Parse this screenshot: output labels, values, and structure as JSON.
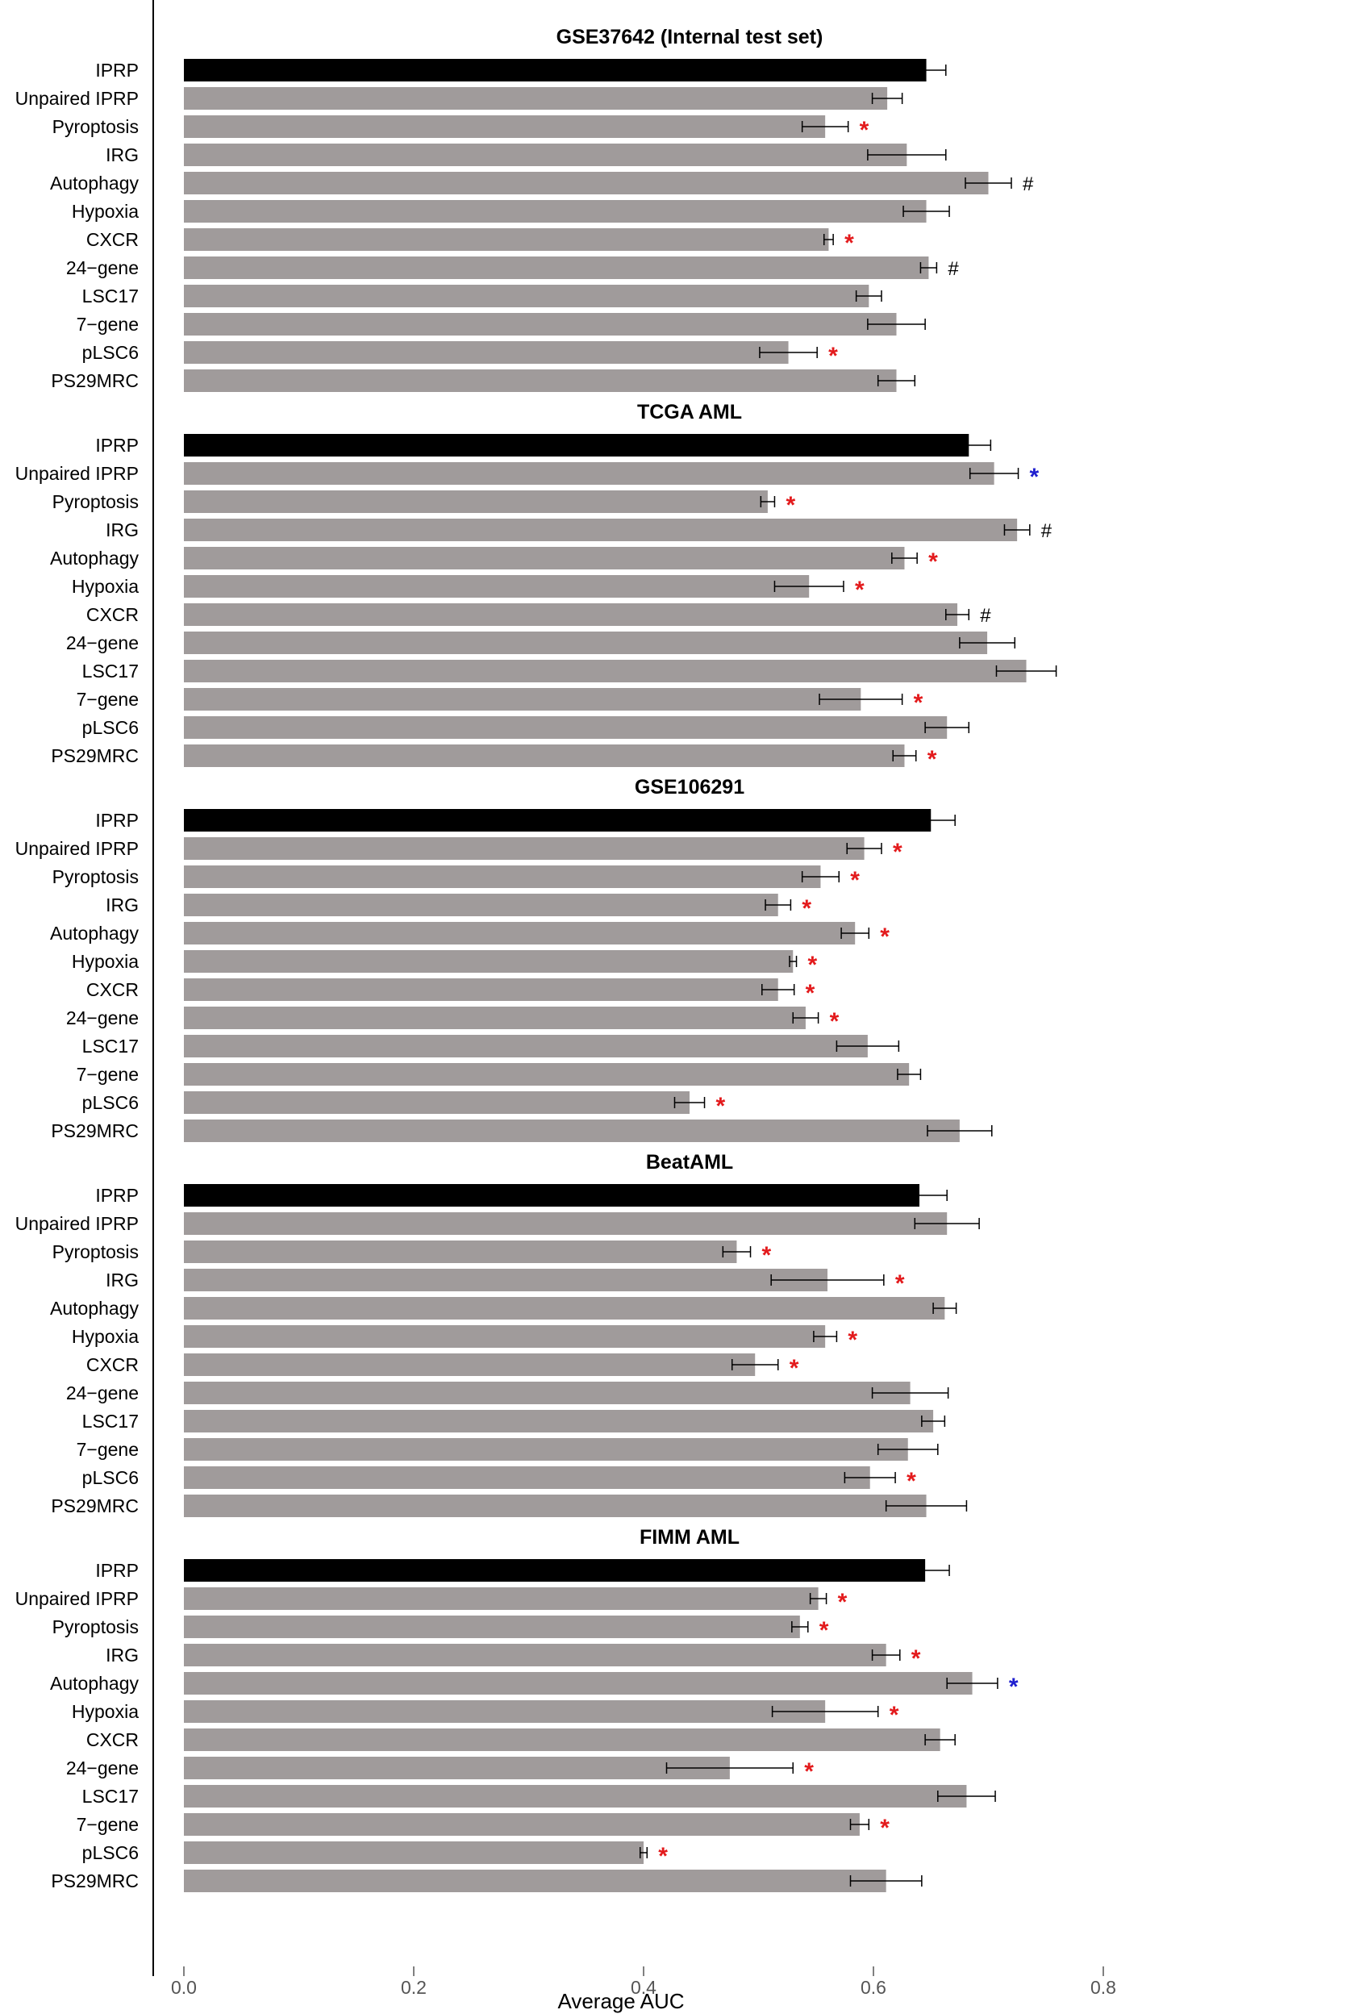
{
  "chart_data": {
    "type": "bar",
    "orientation": "horizontal",
    "xlabel": "Average AUC",
    "xlim": [
      -0.03,
      0.81
    ],
    "xticks": [
      "0.0",
      "0.2",
      "0.4",
      "0.6",
      "0.8"
    ],
    "xtick_values": [
      0.0,
      0.2,
      0.4,
      0.6,
      0.8
    ],
    "colors": {
      "highlight": "#000000",
      "bar": "#a09b9b",
      "red_star": "#e31a1c",
      "blue_star": "#1f1fcf",
      "hash": "#000000"
    },
    "categories": [
      "IPRP",
      "Unpaired IPRP",
      "Pyroptosis",
      "IRG",
      "Autophagy",
      "Hypoxia",
      "CXCR",
      "24−gene",
      "LSC17",
      "7−gene",
      "pLSC6",
      "PS29MRC"
    ],
    "panels": [
      {
        "title": "GSE37642 (Internal test set)",
        "values": [
          0.646,
          0.612,
          0.558,
          0.629,
          0.7,
          0.646,
          0.561,
          0.648,
          0.596,
          0.62,
          0.526,
          0.62
        ],
        "errors": [
          0.017,
          0.013,
          0.02,
          0.034,
          0.02,
          0.02,
          0.004,
          0.007,
          0.011,
          0.025,
          0.025,
          0.016
        ],
        "marks": [
          "",
          "",
          "*",
          "",
          "#",
          "",
          "*",
          "#",
          "",
          "",
          "*",
          ""
        ],
        "mark_colors": [
          "",
          "",
          "red",
          "",
          "black",
          "",
          "red",
          "black",
          "",
          "",
          "red",
          ""
        ]
      },
      {
        "title": "TCGA AML",
        "values": [
          0.683,
          0.705,
          0.508,
          0.725,
          0.627,
          0.544,
          0.673,
          0.699,
          0.733,
          0.589,
          0.664,
          0.627
        ],
        "errors": [
          0.019,
          0.021,
          0.006,
          0.011,
          0.011,
          0.03,
          0.01,
          0.024,
          0.026,
          0.036,
          0.019,
          0.01
        ],
        "marks": [
          "",
          "*",
          "*",
          "#",
          "*",
          "*",
          "#",
          "",
          "",
          "*",
          "",
          "*"
        ],
        "mark_colors": [
          "",
          "blue",
          "red",
          "black",
          "red",
          "red",
          "black",
          "",
          "",
          "red",
          "",
          "red"
        ]
      },
      {
        "title": "GSE106291",
        "values": [
          0.65,
          0.592,
          0.554,
          0.517,
          0.584,
          0.53,
          0.517,
          0.541,
          0.595,
          0.631,
          0.44,
          0.675
        ],
        "errors": [
          0.021,
          0.015,
          0.016,
          0.011,
          0.012,
          0.003,
          0.014,
          0.011,
          0.027,
          0.01,
          0.013,
          0.028
        ],
        "marks": [
          "",
          "*",
          "*",
          "*",
          "*",
          "*",
          "*",
          "*",
          "",
          "",
          "*",
          ""
        ],
        "mark_colors": [
          "",
          "red",
          "red",
          "red",
          "red",
          "red",
          "red",
          "red",
          "",
          "",
          "red",
          ""
        ]
      },
      {
        "title": "BeatAML",
        "values": [
          0.64,
          0.664,
          0.481,
          0.56,
          0.662,
          0.558,
          0.497,
          0.632,
          0.652,
          0.63,
          0.597,
          0.646
        ],
        "errors": [
          0.024,
          0.028,
          0.012,
          0.049,
          0.01,
          0.01,
          0.02,
          0.033,
          0.01,
          0.026,
          0.022,
          0.035
        ],
        "marks": [
          "",
          "",
          "*",
          "*",
          "",
          "*",
          "*",
          "",
          "",
          "",
          "*",
          ""
        ],
        "mark_colors": [
          "",
          "",
          "red",
          "red",
          "",
          "red",
          "red",
          "",
          "",
          "",
          "red",
          ""
        ]
      },
      {
        "title": "FIMM AML",
        "values": [
          0.645,
          0.552,
          0.536,
          0.611,
          0.686,
          0.558,
          0.658,
          0.475,
          0.681,
          0.588,
          0.4,
          0.611
        ],
        "errors": [
          0.021,
          0.007,
          0.007,
          0.012,
          0.022,
          0.046,
          0.013,
          0.055,
          0.025,
          0.008,
          0.003,
          0.031
        ],
        "marks": [
          "",
          "*",
          "*",
          "*",
          "*",
          "*",
          "",
          "*",
          "",
          "*",
          "*",
          ""
        ],
        "mark_colors": [
          "",
          "red",
          "red",
          "red",
          "blue",
          "red",
          "",
          "red",
          "",
          "red",
          "red",
          ""
        ]
      }
    ]
  }
}
